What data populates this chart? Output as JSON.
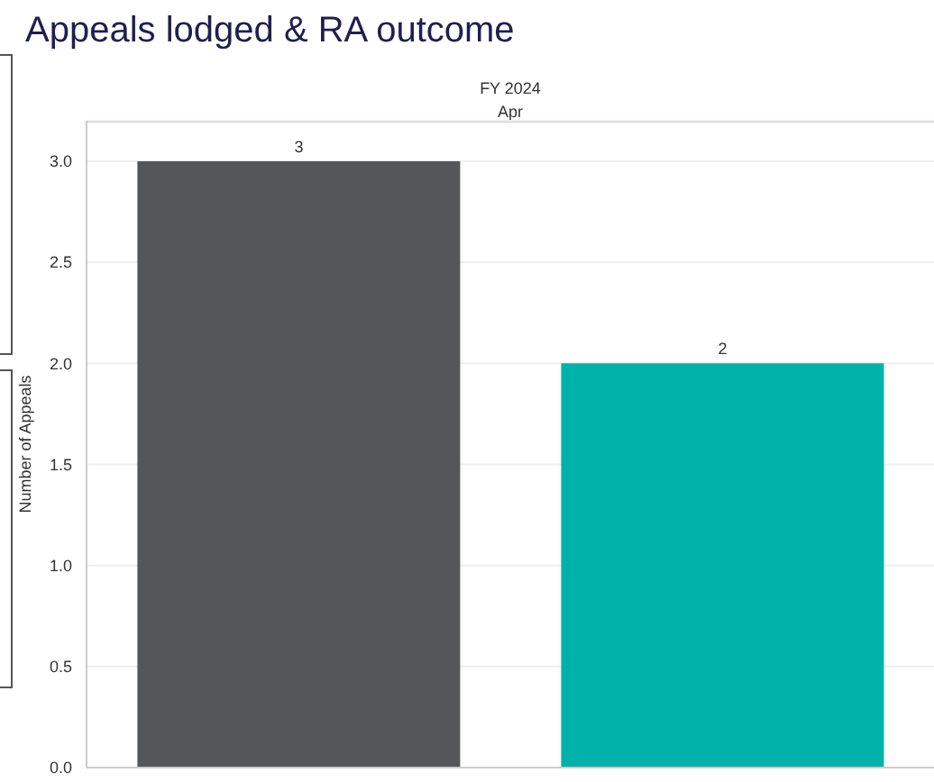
{
  "chart_data": {
    "type": "bar",
    "title": "Appeals lodged & RA outcome",
    "annotations": [
      "FY 2024",
      "Apr"
    ],
    "ylabel": "Number of Appeals",
    "categories": [
      null,
      null
    ],
    "values": [
      3,
      2
    ],
    "colors": [
      "#54565a",
      "#00b2a9"
    ],
    "ylim": [
      0,
      3.2
    ],
    "yticks": [
      {
        "value": 0,
        "label": "0.0"
      },
      {
        "value": 0.5,
        "label": "0.5"
      },
      {
        "value": 1,
        "label": "1.0"
      },
      {
        "value": 1.5,
        "label": "1.5"
      },
      {
        "value": 2,
        "label": "2.0"
      },
      {
        "value": 2.5,
        "label": "2.5"
      },
      {
        "value": 3,
        "label": "3.0"
      }
    ],
    "grid": "y",
    "data_labels": true,
    "legend": false
  }
}
